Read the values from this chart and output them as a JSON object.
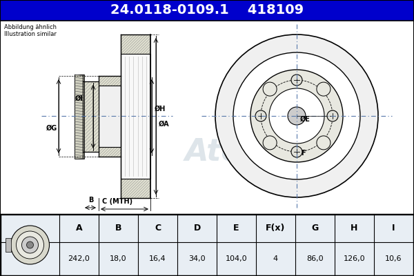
{
  "title_part": "24.0118-0109.1",
  "title_code": "418109",
  "subtitle1": "Abbildung ähnlich",
  "subtitle2": "Illustration similar",
  "title_bg": "#0000cc",
  "title_fg": "#ffffff",
  "bg_color": "#b8cfe0",
  "draw_bg": "#ffffff",
  "black": "#000000",
  "gray_hatch": "#aaaaaa",
  "dim_line_color": "#5577aa",
  "table_header_bg": "#d0dce8",
  "table_val_bg": "#ffffff",
  "col_labels": [
    "A",
    "B",
    "C",
    "D",
    "E",
    "F(x)",
    "G",
    "H",
    "I"
  ],
  "values": [
    "242,0",
    "18,0",
    "16,4",
    "34,0",
    "104,0",
    "4",
    "86,0",
    "126,0",
    "10,6"
  ],
  "watermark": "Ate"
}
